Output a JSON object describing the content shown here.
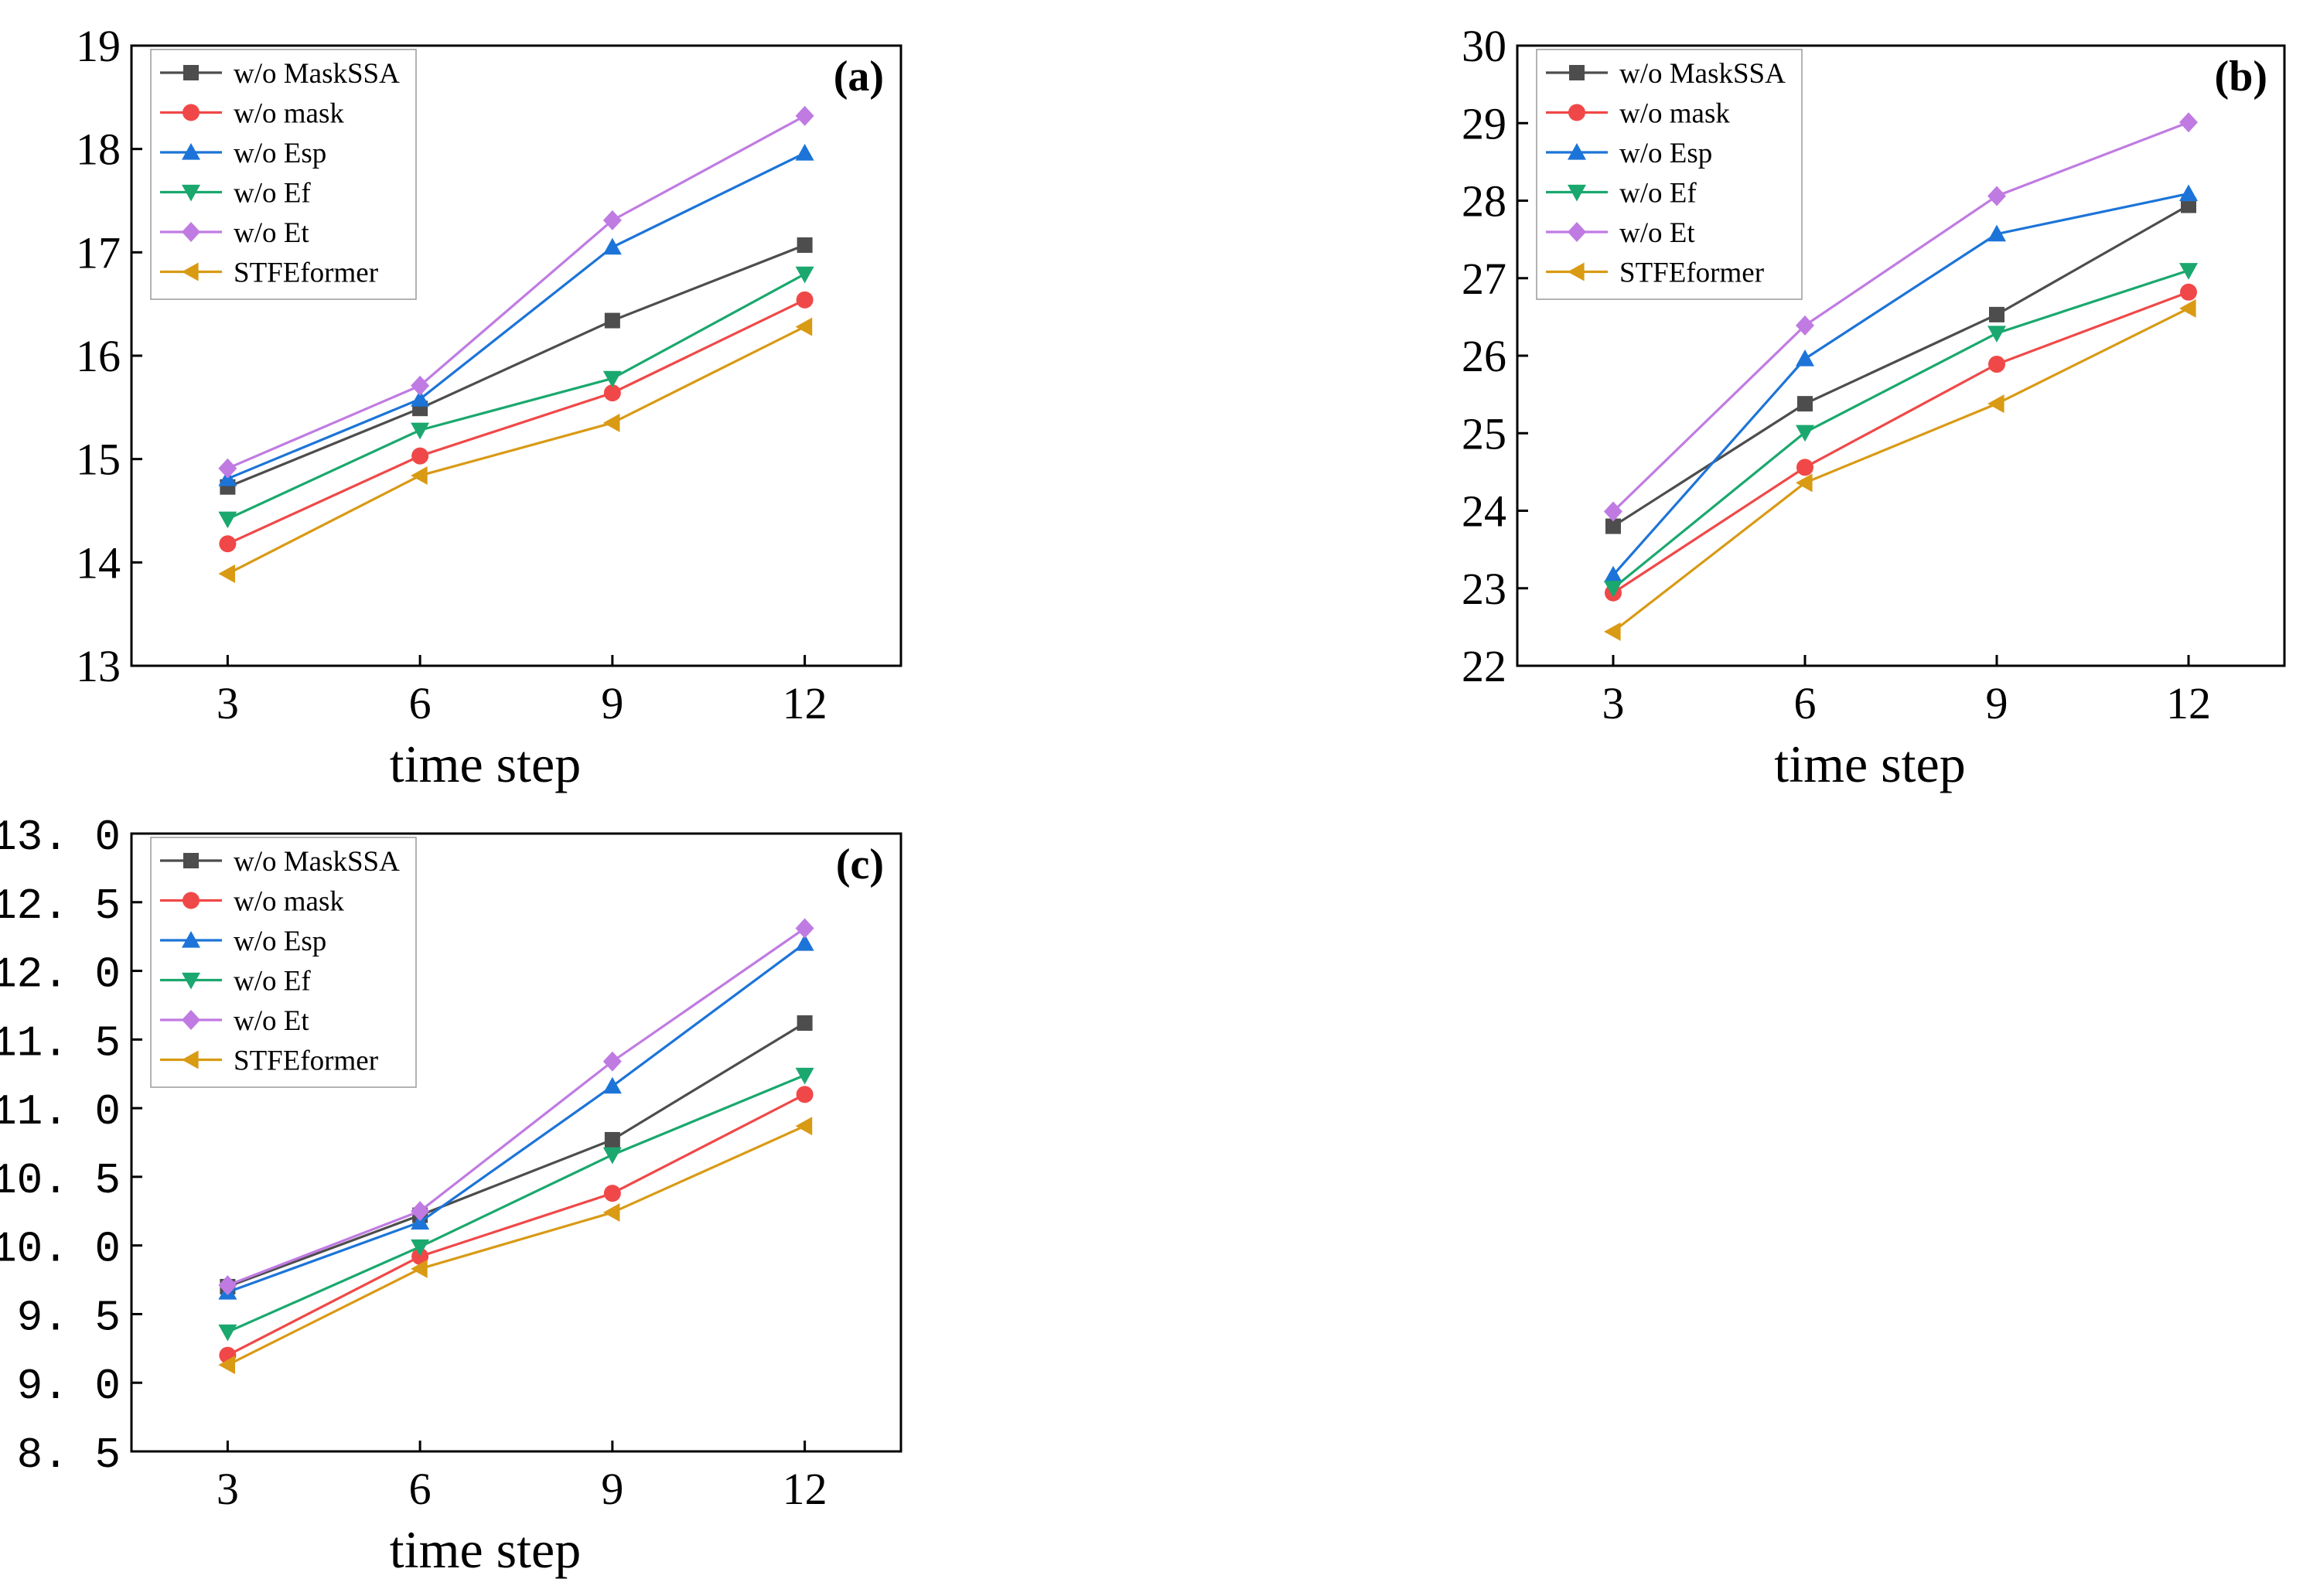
{
  "colors": {
    "w/o MaskSSA": "#4d4d4d",
    "w/o mask": "#f04848",
    "w/o Esp": "#1c74d8",
    "w/o Ef": "#1aa86e",
    "w/o Et": "#c07be2",
    "STFEformer": "#d99a14"
  },
  "markers": {
    "w/o MaskSSA": "square",
    "w/o mask": "circle",
    "w/o Esp": "triangle-up",
    "w/o Ef": "triangle-down",
    "w/o Et": "diamond",
    "STFEformer": "triangle-left"
  },
  "chart_data": [
    {
      "panel": "(a)",
      "type": "line",
      "xlabel": "time step",
      "ylabel": "",
      "x": [
        3,
        6,
        9,
        12
      ],
      "xlim": [
        1.5,
        13.5
      ],
      "ylim": [
        13,
        19
      ],
      "yticks": [
        "13",
        "14",
        "15",
        "16",
        "17",
        "18",
        "19"
      ],
      "xticks": [
        "3",
        "6",
        "9",
        "12"
      ],
      "legend_position": "top-left",
      "grid": false,
      "series": [
        {
          "name": "w/o MaskSSA",
          "values": [
            14.73,
            15.49,
            16.34,
            17.07
          ]
        },
        {
          "name": "w/o mask",
          "values": [
            14.18,
            15.03,
            15.64,
            16.54
          ]
        },
        {
          "name": "w/o Esp",
          "values": [
            14.81,
            15.58,
            17.05,
            17.96
          ]
        },
        {
          "name": "w/o Ef",
          "values": [
            14.42,
            15.28,
            15.78,
            16.79
          ]
        },
        {
          "name": "w/o Et",
          "values": [
            14.91,
            15.71,
            17.31,
            18.32
          ]
        },
        {
          "name": "STFEformer",
          "values": [
            13.89,
            14.84,
            15.35,
            16.28
          ]
        }
      ]
    },
    {
      "panel": "(b)",
      "type": "line",
      "xlabel": "time step",
      "ylabel": "",
      "x": [
        3,
        6,
        9,
        12
      ],
      "xlim": [
        1.5,
        13.5
      ],
      "ylim": [
        22,
        30
      ],
      "yticks": [
        "22",
        "23",
        "24",
        "25",
        "26",
        "27",
        "28",
        "29",
        "30"
      ],
      "xticks": [
        "3",
        "6",
        "9",
        "12"
      ],
      "legend_position": "top-left",
      "grid": false,
      "series": [
        {
          "name": "w/o MaskSSA",
          "values": [
            23.8,
            25.38,
            26.53,
            27.94
          ]
        },
        {
          "name": "w/o mask",
          "values": [
            22.94,
            24.56,
            25.89,
            26.82
          ]
        },
        {
          "name": "w/o Esp",
          "values": [
            23.17,
            25.96,
            27.57,
            28.09
          ]
        },
        {
          "name": "w/o Ef",
          "values": [
            23.0,
            25.01,
            26.29,
            27.1
          ]
        },
        {
          "name": "w/o Et",
          "values": [
            23.99,
            26.39,
            28.06,
            29.01
          ]
        },
        {
          "name": "STFEformer",
          "values": [
            22.44,
            24.36,
            25.38,
            26.61
          ]
        }
      ]
    },
    {
      "panel": "(c)",
      "type": "line",
      "xlabel": "time step",
      "ylabel": "",
      "x": [
        3,
        6,
        9,
        12
      ],
      "xlim": [
        1.5,
        13.5
      ],
      "ylim": [
        8.5,
        13.0
      ],
      "yticks": [
        "8. 5",
        "9. 0",
        "9. 5",
        "10. 0",
        "10. 5",
        "11. 0",
        "11. 5",
        "12. 0",
        "12. 5",
        "13. 0"
      ],
      "xticks": [
        "3",
        "6",
        "9",
        "12"
      ],
      "legend_position": "top-left",
      "grid": false,
      "series": [
        {
          "name": "w/o MaskSSA",
          "values": [
            9.7,
            10.22,
            10.77,
            11.62
          ]
        },
        {
          "name": "w/o mask",
          "values": [
            9.2,
            9.92,
            10.38,
            11.1
          ]
        },
        {
          "name": "w/o Esp",
          "values": [
            9.66,
            10.17,
            11.16,
            12.2
          ]
        },
        {
          "name": "w/o Ef",
          "values": [
            9.37,
            9.99,
            10.66,
            11.24
          ]
        },
        {
          "name": "w/o Et",
          "values": [
            9.71,
            10.25,
            11.34,
            12.31
          ]
        },
        {
          "name": "STFEformer",
          "values": [
            9.13,
            9.83,
            10.24,
            10.87
          ]
        }
      ]
    }
  ]
}
